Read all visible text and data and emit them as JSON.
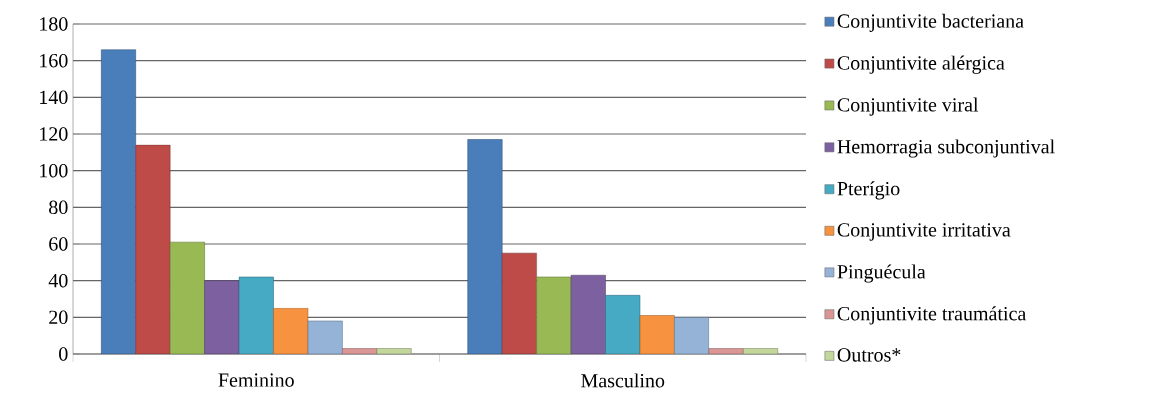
{
  "chart_data": {
    "type": "bar",
    "categories": [
      "Feminino",
      "Masculino"
    ],
    "series": [
      {
        "name": "Conjuntivite bacteriana",
        "color": "#4a7ebb",
        "values": [
          166,
          117
        ]
      },
      {
        "name": "Conjuntivite alérgica",
        "color": "#be4b48",
        "values": [
          114,
          55
        ]
      },
      {
        "name": "Conjuntivite viral",
        "color": "#98b954",
        "values": [
          61,
          42
        ]
      },
      {
        "name": "Hemorragia subconjuntival",
        "color": "#7d60a0",
        "values": [
          40,
          43
        ]
      },
      {
        "name": "Pterígio",
        "color": "#46aac5",
        "values": [
          42,
          32
        ]
      },
      {
        "name": "Conjuntivite irritativa",
        "color": "#f69240",
        "values": [
          25,
          21
        ]
      },
      {
        "name": "Pinguécula",
        "color": "#95b3d7",
        "values": [
          18,
          20
        ]
      },
      {
        "name": "Conjuntivite traumática",
        "color": "#d99694",
        "values": [
          3,
          3
        ]
      },
      {
        "name": "Outros*",
        "color": "#c3d69b",
        "values": [
          3,
          3
        ]
      }
    ],
    "ylim": [
      0,
      180
    ],
    "yticks": [
      0,
      20,
      40,
      60,
      80,
      100,
      120,
      140,
      160,
      180
    ],
    "grid": "y",
    "legend": "right"
  }
}
